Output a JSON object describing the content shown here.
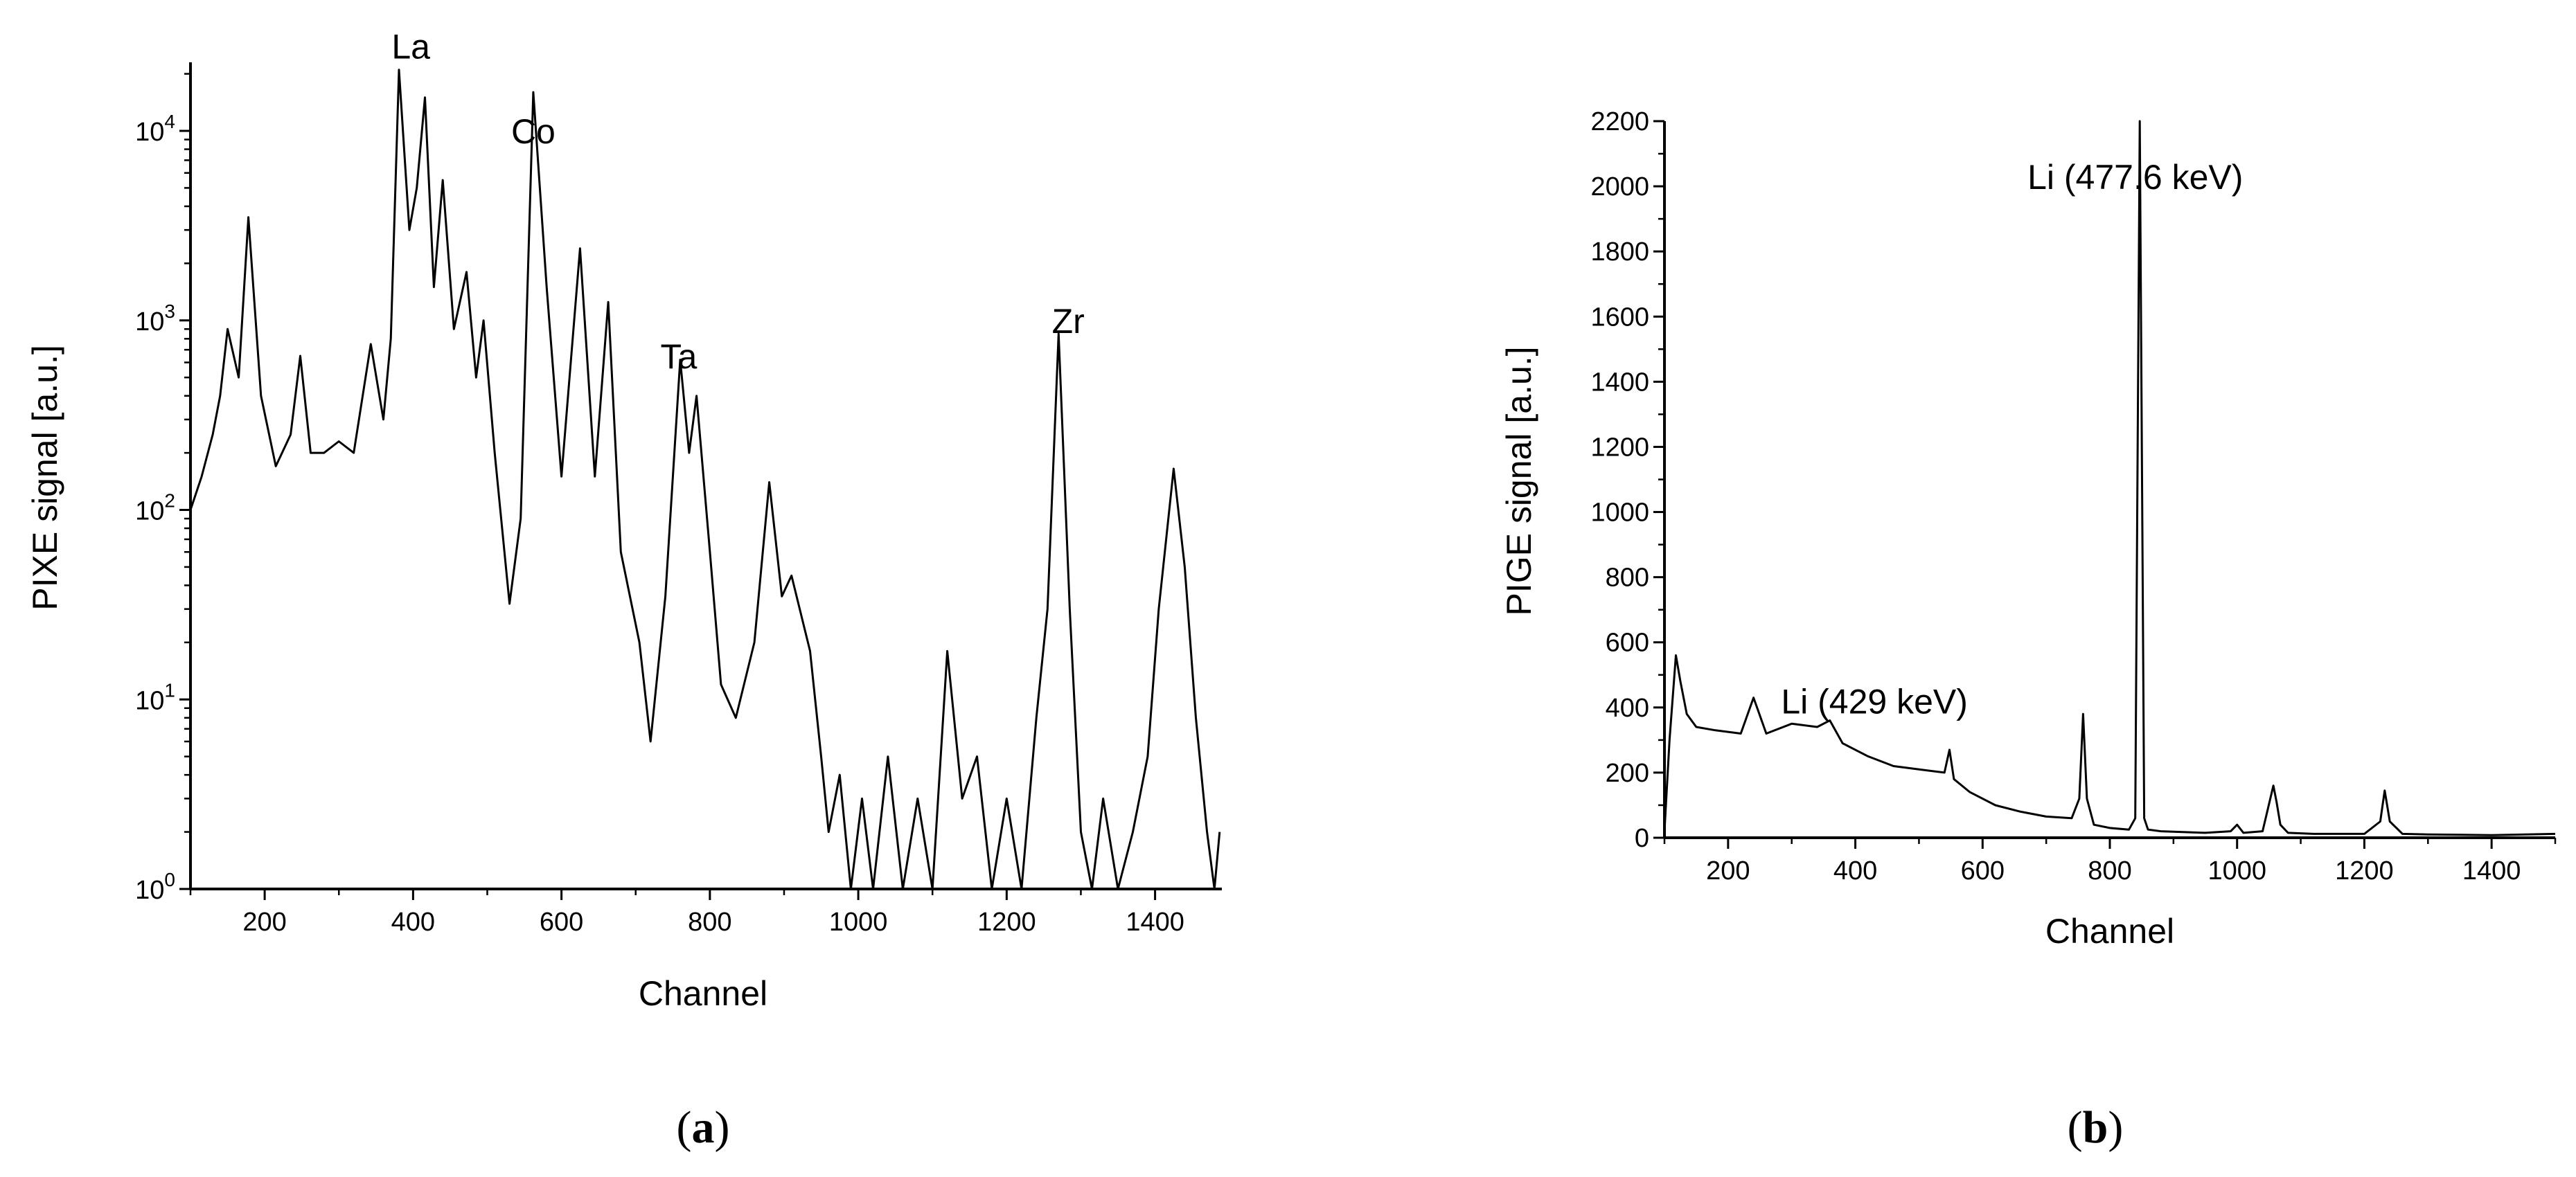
{
  "chart_data": [
    {
      "type": "line",
      "panel_label": {
        "open": "(",
        "letter": "a",
        "close": ")"
      },
      "xlabel": "Channel",
      "ylabel": "PIXE signal [a.u.]",
      "xlim": [
        100,
        1490
      ],
      "ylim": [
        1,
        23000
      ],
      "yscale": "log",
      "grid": false,
      "xticks": [
        "200",
        "400",
        "600",
        "800",
        "1000",
        "1200",
        "1400"
      ],
      "yticks": [
        {
          "base": "10",
          "exp": "0"
        },
        {
          "base": "10",
          "exp": "1"
        },
        {
          "base": "10",
          "exp": "2"
        },
        {
          "base": "10",
          "exp": "3"
        },
        {
          "base": "10",
          "exp": "4"
        }
      ],
      "annotations": [
        {
          "text": "La",
          "x": 397,
          "y": 28000
        },
        {
          "text": "Co",
          "x": 562,
          "y": 10000
        },
        {
          "text": "Ta",
          "x": 758,
          "y": 650
        },
        {
          "text": "Zr",
          "x": 1283,
          "y": 1000
        }
      ],
      "series": [
        {
          "x": [
            100,
            115,
            130,
            140,
            150,
            165,
            178,
            195,
            215,
            235,
            248,
            262,
            280,
            300,
            320,
            343,
            360,
            370,
            381,
            395,
            405,
            416,
            428,
            440,
            455,
            472,
            485,
            495,
            510,
            530,
            545,
            562,
            580,
            600,
            625,
            645,
            663,
            680,
            705,
            720,
            740,
            760,
            772,
            782,
            800,
            815,
            835,
            860,
            880,
            897,
            910,
            935,
            950,
            960,
            975,
            990,
            1005,
            1020,
            1040,
            1060,
            1080,
            1100,
            1120,
            1140,
            1160,
            1180,
            1200,
            1220,
            1240,
            1255,
            1270,
            1285,
            1300,
            1315,
            1330,
            1350,
            1370,
            1390,
            1405,
            1425,
            1440,
            1455,
            1470,
            1480,
            1487
          ],
          "y": [
            100,
            150,
            250,
            400,
            900,
            500,
            3500,
            400,
            170,
            250,
            650,
            200,
            200,
            230,
            200,
            750,
            300,
            800,
            21000,
            3000,
            5000,
            15000,
            1500,
            5500,
            900,
            1800,
            500,
            1000,
            200,
            32,
            90,
            16000,
            1500,
            150,
            2400,
            150,
            1250,
            60,
            20,
            6,
            35,
            620,
            200,
            400,
            60,
            12,
            8,
            20,
            140,
            35,
            45,
            18,
            5,
            2,
            4,
            1,
            3,
            1,
            5,
            1,
            3,
            1,
            18,
            3,
            5,
            1,
            3,
            1,
            8,
            30,
            850,
            30,
            2,
            1,
            3,
            1,
            2,
            5,
            30,
            165,
            50,
            8,
            2,
            1,
            2
          ]
        }
      ]
    },
    {
      "type": "line",
      "panel_label": {
        "open": "(",
        "letter": "b",
        "close": ")"
      },
      "xlabel": "Channel",
      "ylabel": "PIGE signal [a.u.]",
      "xlim": [
        100,
        1500
      ],
      "ylim": [
        0,
        2200
      ],
      "grid": false,
      "xticks": [
        "200",
        "400",
        "600",
        "800",
        "1000",
        "1200",
        "1400"
      ],
      "yticks": [
        "0",
        "200",
        "400",
        "600",
        "800",
        "1000",
        "1200",
        "1400",
        "1600",
        "1800",
        "2000",
        "2200"
      ],
      "annotations": [
        {
          "text": "Li (429 keV)",
          "x": 430,
          "y": 420
        },
        {
          "text": "Li (477.6 keV)",
          "x": 840,
          "y": 2030
        }
      ],
      "series": [
        {
          "x": [
            100,
            108,
            118,
            125,
            135,
            150,
            180,
            220,
            240,
            260,
            300,
            340,
            360,
            380,
            420,
            460,
            500,
            540,
            548,
            555,
            580,
            620,
            660,
            700,
            740,
            752,
            758,
            764,
            775,
            800,
            830,
            840,
            847,
            854,
            860,
            880,
            950,
            990,
            1000,
            1010,
            1040,
            1057,
            1062,
            1068,
            1080,
            1120,
            1200,
            1225,
            1232,
            1240,
            1260,
            1300,
            1400,
            1500
          ],
          "y": [
            20,
            300,
            560,
            480,
            380,
            340,
            330,
            320,
            430,
            320,
            350,
            340,
            360,
            290,
            250,
            220,
            210,
            200,
            270,
            180,
            140,
            100,
            80,
            65,
            60,
            120,
            380,
            120,
            40,
            30,
            25,
            60,
            2200,
            60,
            25,
            20,
            15,
            20,
            40,
            15,
            20,
            160,
            110,
            40,
            15,
            12,
            12,
            50,
            145,
            50,
            12,
            10,
            8,
            12
          ]
        }
      ]
    }
  ]
}
